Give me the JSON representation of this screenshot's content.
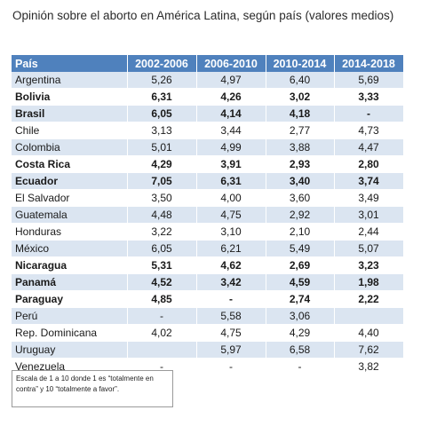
{
  "title": "Opinión sobre el aborto en América Latina, según país (valores medios)",
  "table": {
    "headers": [
      "País",
      "2002-2006",
      "2006-2010",
      "2010-2014",
      "2014-2018"
    ],
    "rows": [
      {
        "country": "Argentina",
        "values": [
          "5,26",
          "4,97",
          "6,40",
          "5,69"
        ],
        "bold": false
      },
      {
        "country": "Bolivia",
        "values": [
          "6,31",
          "4,26",
          "3,02",
          "3,33"
        ],
        "bold": true
      },
      {
        "country": "Brasil",
        "values": [
          "6,05",
          "4,14",
          "4,18",
          "-"
        ],
        "bold": true
      },
      {
        "country": "Chile",
        "values": [
          "3,13",
          "3,44",
          "2,77",
          "4,73"
        ],
        "bold": false
      },
      {
        "country": "Colombia",
        "values": [
          "5,01",
          "4,99",
          "3,88",
          "4,47"
        ],
        "bold": false
      },
      {
        "country": "Costa Rica",
        "values": [
          "4,29",
          "3,91",
          "2,93",
          "2,80"
        ],
        "bold": true
      },
      {
        "country": "Ecuador",
        "values": [
          "7,05",
          "6,31",
          "3,40",
          "3,74"
        ],
        "bold": true
      },
      {
        "country": "El Salvador",
        "values": [
          "3,50",
          "4,00",
          "3,60",
          "3,49"
        ],
        "bold": false
      },
      {
        "country": "Guatemala",
        "values": [
          "4,48",
          "4,75",
          "2,92",
          "3,01"
        ],
        "bold": false
      },
      {
        "country": "Honduras",
        "values": [
          "3,22",
          "3,10",
          "2,10",
          "2,44"
        ],
        "bold": false
      },
      {
        "country": "México",
        "values": [
          "6,05",
          "6,21",
          "5,49",
          "5,07"
        ],
        "bold": false
      },
      {
        "country": "Nicaragua",
        "values": [
          "5,31",
          "4,62",
          "2,69",
          "3,23"
        ],
        "bold": true
      },
      {
        "country": "Panamá",
        "values": [
          "4,52",
          "3,42",
          "4,59",
          "1,98"
        ],
        "bold": true
      },
      {
        "country": "Paraguay",
        "values": [
          "4,85",
          "-",
          "2,74",
          "2,22"
        ],
        "bold": true
      },
      {
        "country": "Perú",
        "values": [
          "-",
          "5,58",
          "3,06",
          ""
        ],
        "bold": false
      },
      {
        "country": "Rep. Dominicana",
        "values": [
          "4,02",
          "4,75",
          "4,29",
          "4,40"
        ],
        "bold": false
      },
      {
        "country": "Uruguay",
        "values": [
          "",
          "5,97",
          "6,58",
          "7,62"
        ],
        "bold": false
      },
      {
        "country": "Venezuela",
        "values": [
          "-",
          "-",
          "-",
          "3,82"
        ],
        "bold": false
      }
    ]
  },
  "footnote": "Escala de 1 a 10 donde 1 es “totalmente en contra” y 10 “totalmente a favor”."
}
